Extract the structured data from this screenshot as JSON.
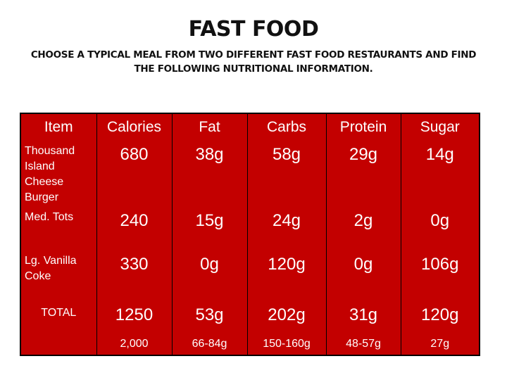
{
  "title": "FAST FOOD",
  "subtitle": "CHOOSE A TYPICAL MEAL FROM TWO DIFFERENT FAST FOOD RESTAURANTS AND FIND THE FOLLOWING NUTRITIONAL INFORMATION.",
  "table": {
    "headers": [
      "Item",
      "Calories",
      "Fat",
      "Carbs",
      "Protein",
      "Sugar"
    ],
    "rows": [
      {
        "item": "Thousand Island Cheese Burger",
        "values": [
          "680",
          "38g",
          "58g",
          "29g",
          "14g"
        ]
      },
      {
        "item": "Med. Tots",
        "values": [
          "240",
          "15g",
          "24g",
          "2g",
          "0g"
        ]
      },
      {
        "item": "Lg. Vanilla Coke",
        "values": [
          "330",
          "0g",
          "120g",
          "0g",
          "106g"
        ]
      },
      {
        "item": "TOTAL",
        "values": [
          "1250",
          "53g",
          "202g",
          "31g",
          "120g"
        ]
      }
    ],
    "recommended": [
      "2,000",
      "66-84g",
      "150-160g",
      "48-57g",
      "27g"
    ]
  },
  "colors": {
    "table_bg": "#c30000",
    "text": "#ffffff"
  }
}
